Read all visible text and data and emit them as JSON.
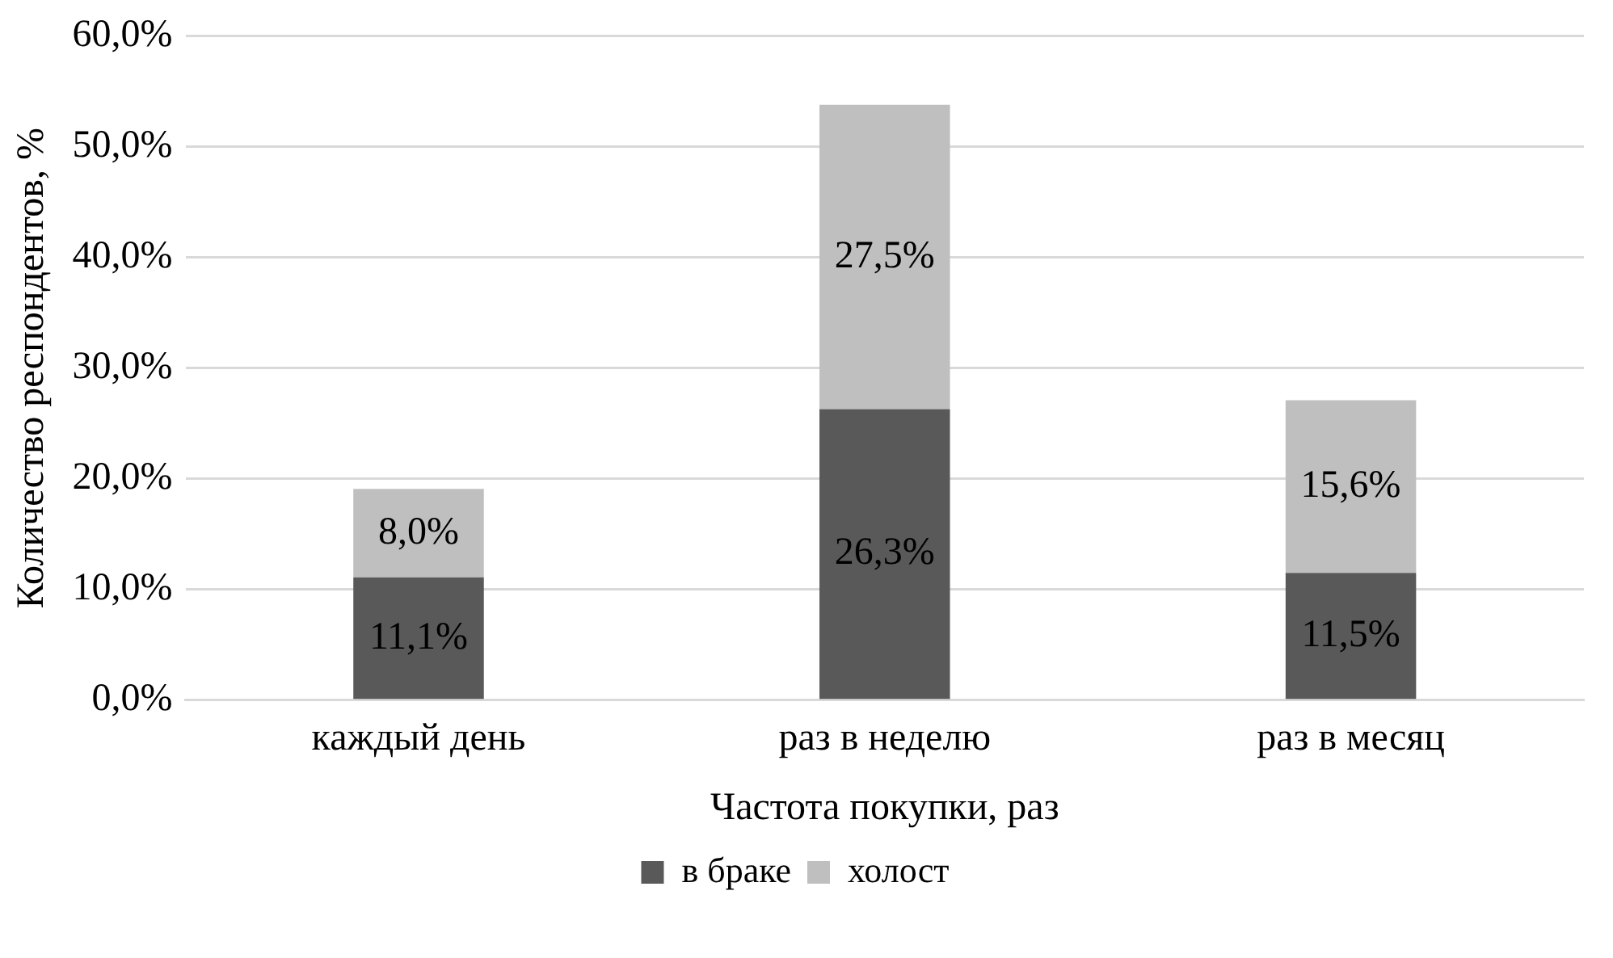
{
  "chart_data": {
    "type": "bar",
    "stacked": true,
    "xlabel": "Частота покупки, раз",
    "ylabel": "Количество респондентов, %",
    "categories": [
      "каждый день",
      "раз в неделю",
      "раз в месяц"
    ],
    "series": [
      {
        "name": "в браке",
        "color": "#595959",
        "values": [
          11.1,
          26.3,
          11.5
        ],
        "value_labels": [
          "11,1%",
          "26,3%",
          "11,5%"
        ]
      },
      {
        "name": "холост",
        "color": "#bfbfbf",
        "values": [
          8.0,
          27.5,
          15.6
        ],
        "value_labels": [
          "8,0%",
          "27,5%",
          "15,6%"
        ]
      }
    ],
    "ylim": [
      0,
      60
    ],
    "yticks": [
      {
        "value": 0,
        "label": "0,0%"
      },
      {
        "value": 10,
        "label": "10,0%"
      },
      {
        "value": 20,
        "label": "20,0%"
      },
      {
        "value": 30,
        "label": "30,0%"
      },
      {
        "value": 40,
        "label": "40,0%"
      },
      {
        "value": 50,
        "label": "50,0%"
      },
      {
        "value": 60,
        "label": "60,0%"
      }
    ],
    "grid": "y",
    "legend": "bottom"
  }
}
